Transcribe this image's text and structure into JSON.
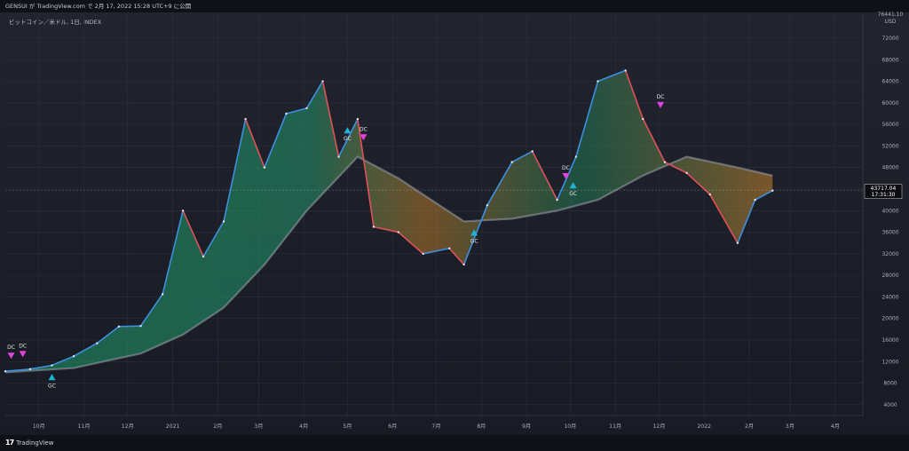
{
  "header": {
    "attribution": "GENSUI が TradingView.com で 2月 17, 2022 15:28 UTC+9 に公開"
  },
  "symbol_label": "ビットコイン／米ドル, 1日, INDEX",
  "brand": {
    "logo_mark": "17",
    "name": "TradingView"
  },
  "price_badge": {
    "price": "43717.04",
    "countdown": "17:31:30"
  },
  "colors": {
    "background": "#1c1f2a",
    "up_blue": "#3d8fe0",
    "down_red": "#e0505a",
    "ribbon_green": "#1f8a5f",
    "ribbon_orange": "#d68a2a",
    "gc_marker": "#1fb3d4",
    "dc_marker": "#e044e0"
  },
  "chart_data": {
    "type": "line",
    "title": "",
    "xlabel": "",
    "ylabel": "",
    "y_unit_label": "USD",
    "y_top_label": "76441.10",
    "ylim": [
      2000,
      76441
    ],
    "y_ticks": [
      4000,
      8000,
      12000,
      16000,
      20000,
      24000,
      28000,
      32000,
      36000,
      40000,
      44000,
      48000,
      52000,
      56000,
      60000,
      64000,
      68000,
      72000
    ],
    "x_labels": [
      "10月",
      "11月",
      "12月",
      "2021",
      "2月",
      "3月",
      "4月",
      "5月",
      "6月",
      "7月",
      "8月",
      "9月",
      "10月",
      "11月",
      "12月",
      "2022",
      "2月",
      "3月",
      "4月"
    ],
    "x_label_dates": [
      "2020-10-01",
      "2020-11-01",
      "2020-12-01",
      "2021-01-01",
      "2021-02-01",
      "2021-03-01",
      "2021-04-01",
      "2021-05-01",
      "2021-06-01",
      "2021-07-01",
      "2021-08-01",
      "2021-09-01",
      "2021-10-01",
      "2021-11-01",
      "2021-12-01",
      "2022-01-01",
      "2022-02-01",
      "2022-03-01",
      "2022-04-01"
    ],
    "xlim": [
      "2020-09-08",
      "2022-04-20"
    ],
    "series": [
      {
        "role": "price",
        "x": [
          "2020-09-08",
          "2020-09-25",
          "2020-10-10",
          "2020-10-25",
          "2020-11-10",
          "2020-11-25",
          "2020-12-10",
          "2020-12-25",
          "2021-01-08",
          "2021-01-22",
          "2021-02-05",
          "2021-02-20",
          "2021-03-05",
          "2021-03-20",
          "2021-04-03",
          "2021-04-14",
          "2021-04-25",
          "2021-05-08",
          "2021-05-19",
          "2021-06-05",
          "2021-06-22",
          "2021-07-10",
          "2021-07-20",
          "2021-08-05",
          "2021-08-22",
          "2021-09-05",
          "2021-09-22",
          "2021-10-05",
          "2021-10-20",
          "2021-11-08",
          "2021-11-20",
          "2021-12-05",
          "2021-12-20",
          "2022-01-05",
          "2022-01-24",
          "2022-02-05",
          "2022-02-17"
        ],
        "y": [
          10200,
          10600,
          11300,
          13000,
          15400,
          18500,
          18600,
          24500,
          40000,
          31500,
          38000,
          57000,
          48000,
          58000,
          59000,
          64000,
          50000,
          57000,
          37000,
          36000,
          32000,
          33000,
          30000,
          41000,
          49000,
          51000,
          42000,
          50000,
          64000,
          66000,
          57000,
          49000,
          47000,
          43000,
          34000,
          42000,
          43717
        ]
      },
      {
        "role": "ema-slow",
        "x": [
          "2020-09-08",
          "2020-10-25",
          "2020-12-10",
          "2021-01-08",
          "2021-02-05",
          "2021-03-05",
          "2021-04-03",
          "2021-05-08",
          "2021-06-05",
          "2021-07-20",
          "2021-08-22",
          "2021-09-22",
          "2021-10-20",
          "2021-11-20",
          "2021-12-20",
          "2022-01-24",
          "2022-02-17"
        ],
        "y": [
          10000,
          10800,
          13500,
          17000,
          22000,
          30000,
          40000,
          50000,
          46000,
          38000,
          38500,
          40000,
          42000,
          46500,
          50000,
          48000,
          46500
        ]
      }
    ],
    "markers": [
      {
        "label": "DC",
        "x": "2020-09-12",
        "y": 13000,
        "shape": "triangle-down"
      },
      {
        "label": "DC",
        "x": "2020-09-20",
        "y": 13300,
        "shape": "triangle-down"
      },
      {
        "label": "GC",
        "x": "2020-10-10",
        "y": 9200,
        "shape": "triangle-up"
      },
      {
        "label": "GC",
        "x": "2021-05-01",
        "y": 55000,
        "shape": "triangle-up"
      },
      {
        "label": "DC",
        "x": "2021-05-12",
        "y": 53500,
        "shape": "triangle-down"
      },
      {
        "label": "GC",
        "x": "2021-07-27",
        "y": 36000,
        "shape": "triangle-up"
      },
      {
        "label": "DC",
        "x": "2021-09-28",
        "y": 46300,
        "shape": "triangle-down"
      },
      {
        "label": "GC",
        "x": "2021-10-03",
        "y": 44800,
        "shape": "triangle-up"
      },
      {
        "label": "DC",
        "x": "2021-12-02",
        "y": 59500,
        "shape": "triangle-down"
      }
    ],
    "grid": true,
    "legend": "none"
  }
}
